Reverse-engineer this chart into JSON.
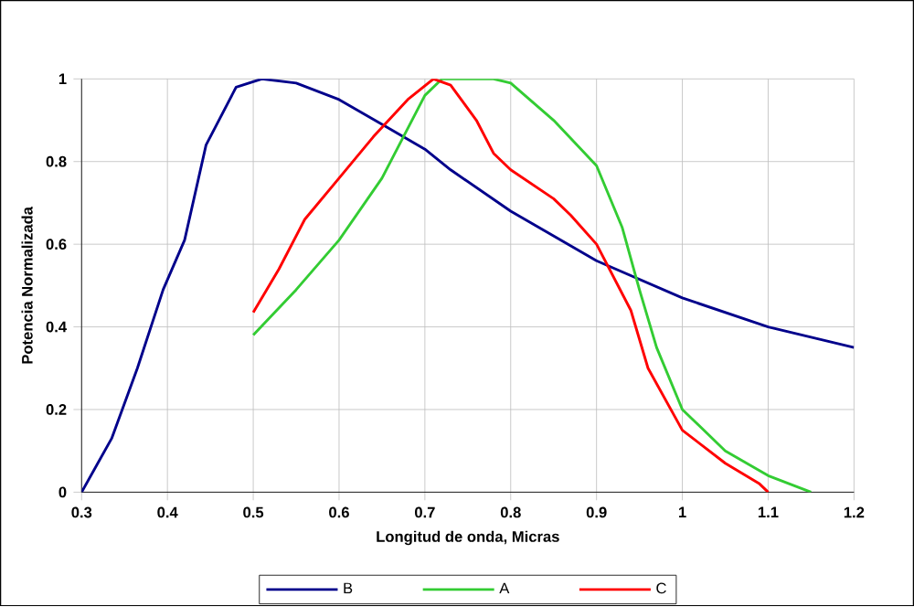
{
  "chart_data": {
    "type": "line",
    "xlabel": "Longitud de onda, Micras",
    "ylabel": "Potencia Normalizada",
    "xlim": [
      0.3,
      1.2
    ],
    "ylim": [
      0,
      1
    ],
    "xticks": [
      0.3,
      0.4,
      0.5,
      0.6,
      0.7,
      0.8,
      0.9,
      1,
      1.1,
      1.2
    ],
    "yticks": [
      0,
      0.2,
      0.4,
      0.6,
      0.8,
      1
    ],
    "grid": true,
    "legend": "bottom",
    "marker": "none",
    "line_style": "solid",
    "series": [
      {
        "name": "B",
        "color": "#00008b",
        "x": [
          0.3,
          0.335,
          0.365,
          0.395,
          0.42,
          0.445,
          0.48,
          0.51,
          0.55,
          0.6,
          0.65,
          0.7,
          0.73,
          0.8,
          0.9,
          1.0,
          1.1,
          1.2
        ],
        "values": [
          0,
          0.13,
          0.3,
          0.49,
          0.61,
          0.84,
          0.98,
          1.0,
          0.99,
          0.95,
          0.89,
          0.83,
          0.78,
          0.68,
          0.56,
          0.47,
          0.4,
          0.35
        ]
      },
      {
        "name": "A",
        "color": "#33cc33",
        "x": [
          0.5,
          0.55,
          0.6,
          0.65,
          0.7,
          0.72,
          0.78,
          0.8,
          0.85,
          0.9,
          0.93,
          0.95,
          0.97,
          1.0,
          1.05,
          1.1,
          1.15
        ],
        "values": [
          0.38,
          0.49,
          0.61,
          0.76,
          0.96,
          1.0,
          1.0,
          0.99,
          0.9,
          0.79,
          0.64,
          0.49,
          0.35,
          0.2,
          0.1,
          0.04,
          0
        ]
      },
      {
        "name": "C",
        "color": "#ff0000",
        "x": [
          0.5,
          0.53,
          0.56,
          0.6,
          0.64,
          0.68,
          0.71,
          0.73,
          0.76,
          0.78,
          0.8,
          0.85,
          0.87,
          0.9,
          0.92,
          0.94,
          0.96,
          1.0,
          1.05,
          1.09,
          1.1
        ],
        "values": [
          0.435,
          0.54,
          0.66,
          0.76,
          0.86,
          0.95,
          1.0,
          0.985,
          0.9,
          0.82,
          0.78,
          0.71,
          0.67,
          0.6,
          0.52,
          0.44,
          0.3,
          0.15,
          0.07,
          0.02,
          0
        ]
      }
    ]
  }
}
